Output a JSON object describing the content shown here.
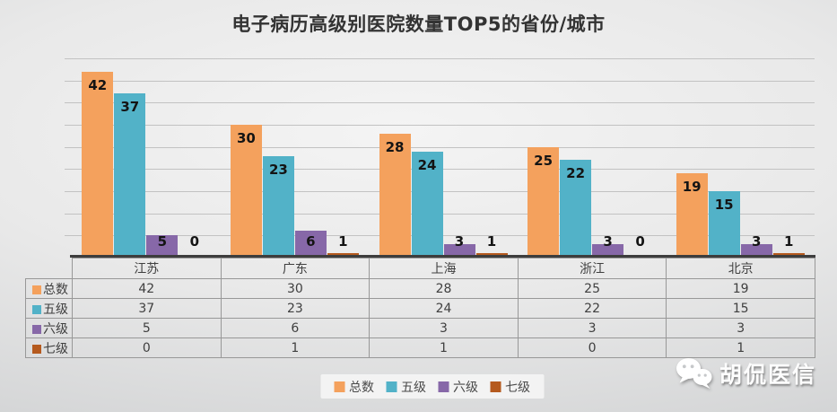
{
  "title": "电子病历高级别医院数量TOP5的省份/城市",
  "watermark": {
    "icon": "wechat-icon",
    "text": "胡侃医信"
  },
  "chart_data": {
    "type": "bar",
    "title": "电子病历高级别医院数量TOP5的省份/城市",
    "categories": [
      "江苏",
      "广东",
      "上海",
      "浙江",
      "北京"
    ],
    "series": [
      {
        "name": "总数",
        "color": "#F4A15D",
        "values": [
          42,
          30,
          28,
          25,
          19
        ]
      },
      {
        "name": "五级",
        "color": "#52B2C8",
        "values": [
          37,
          23,
          24,
          22,
          15
        ]
      },
      {
        "name": "六级",
        "color": "#8768A8",
        "values": [
          5,
          6,
          3,
          3,
          3
        ]
      },
      {
        "name": "七级",
        "color": "#B55A1E",
        "values": [
          0,
          1,
          1,
          0,
          1
        ]
      }
    ],
    "ylim": [
      0,
      45
    ],
    "gridline_step": 5,
    "grid": true,
    "data_labels": true,
    "legend_position": "bottom",
    "data_table_shown": true,
    "colors": {
      "axis_line": "#3d3d3d",
      "gridline": "#c2c2c2",
      "table_border": "#989898",
      "title_text": "#333333"
    }
  }
}
